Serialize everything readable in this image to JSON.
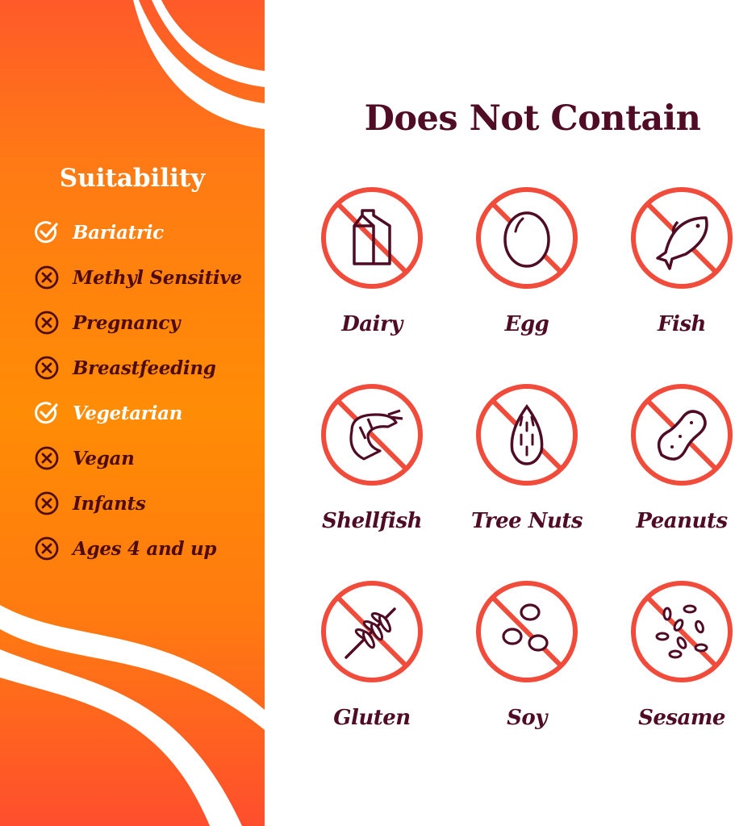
{
  "suitability": {
    "title": "Suitability",
    "items": [
      {
        "label": "Bariatric",
        "suitable": true
      },
      {
        "label": "Methyl Sensitive",
        "suitable": false
      },
      {
        "label": "Pregnancy",
        "suitable": false
      },
      {
        "label": "Breastfeeding",
        "suitable": false
      },
      {
        "label": "Vegetarian",
        "suitable": true
      },
      {
        "label": "Vegan",
        "suitable": false
      },
      {
        "label": "Infants",
        "suitable": false
      },
      {
        "label": "Ages 4 and up",
        "suitable": false
      }
    ]
  },
  "does_not_contain": {
    "title": "Does Not Contain",
    "items": [
      {
        "label": "Dairy",
        "icon": "milk-carton-icon"
      },
      {
        "label": "Egg",
        "icon": "egg-icon"
      },
      {
        "label": "Fish",
        "icon": "fish-icon"
      },
      {
        "label": "Shellfish",
        "icon": "shrimp-icon"
      },
      {
        "label": "Tree Nuts",
        "icon": "almond-icon"
      },
      {
        "label": "Peanuts",
        "icon": "peanut-icon"
      },
      {
        "label": "Gluten",
        "icon": "wheat-icon"
      },
      {
        "label": "Soy",
        "icon": "soybean-icon"
      },
      {
        "label": "Sesame",
        "icon": "sesame-seeds-icon"
      }
    ]
  },
  "colors": {
    "accent_orange": "#ff8c05",
    "prohibit_red": "#f04b3b",
    "text_maroon": "#4f0c24"
  }
}
